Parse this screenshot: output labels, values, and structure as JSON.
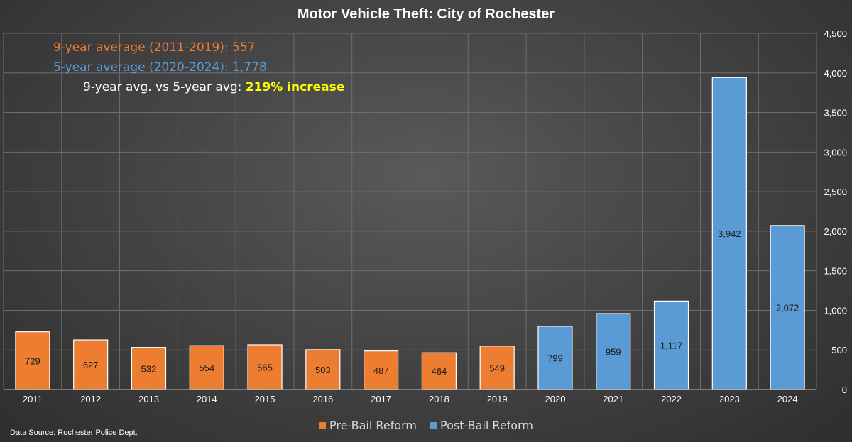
{
  "chart_data": {
    "type": "bar",
    "title": "Motor Vehicle Theft: City of Rochester",
    "categories": [
      "2011",
      "2012",
      "2013",
      "2014",
      "2015",
      "2016",
      "2017",
      "2018",
      "2019",
      "2020",
      "2021",
      "2022",
      "2023",
      "2024"
    ],
    "series": [
      {
        "name": "Pre-Bail Reform",
        "color": "#ed7d31",
        "values": [
          729,
          627,
          532,
          554,
          565,
          503,
          487,
          464,
          549,
          null,
          null,
          null,
          null,
          null
        ]
      },
      {
        "name": "Post-Bail Reform",
        "color": "#5b9bd5",
        "values": [
          null,
          null,
          null,
          null,
          null,
          null,
          null,
          null,
          null,
          799,
          959,
          1117,
          3942,
          2072
        ]
      }
    ],
    "data_labels": [
      "729",
      "627",
      "532",
      "554",
      "565",
      "503",
      "487",
      "464",
      "549",
      "799",
      "959",
      "1,117",
      "3,942",
      "2,072"
    ],
    "ylim": [
      0,
      4500
    ],
    "y_ticks": [
      0,
      500,
      1000,
      1500,
      2000,
      2500,
      3000,
      3500,
      4000,
      4500
    ],
    "y_tick_labels": [
      "0",
      "500",
      "1,000",
      "1,500",
      "2,000",
      "2,500",
      "3,000",
      "3,500",
      "4,000",
      "4,500"
    ],
    "y_axis_side": "right",
    "grid": true,
    "legend_position": "bottom",
    "xlabel": "",
    "ylabel": ""
  },
  "annotations": {
    "avg_pre_label": "9-year average (2011-2019):",
    "avg_pre_value": "557",
    "avg_post_label": "5-year average (2020-2024):",
    "avg_post_value": "1,778",
    "compare_label": "9-year avg. vs 5-year avg:",
    "compare_value": "219% increase"
  },
  "legend": {
    "pre_label": "Pre-Bail Reform",
    "post_label": "Post-Bail Reform",
    "pre_color": "#ed7d31",
    "post_color": "#5b9bd5"
  },
  "source": "Data Source: Rochester Police Dept."
}
